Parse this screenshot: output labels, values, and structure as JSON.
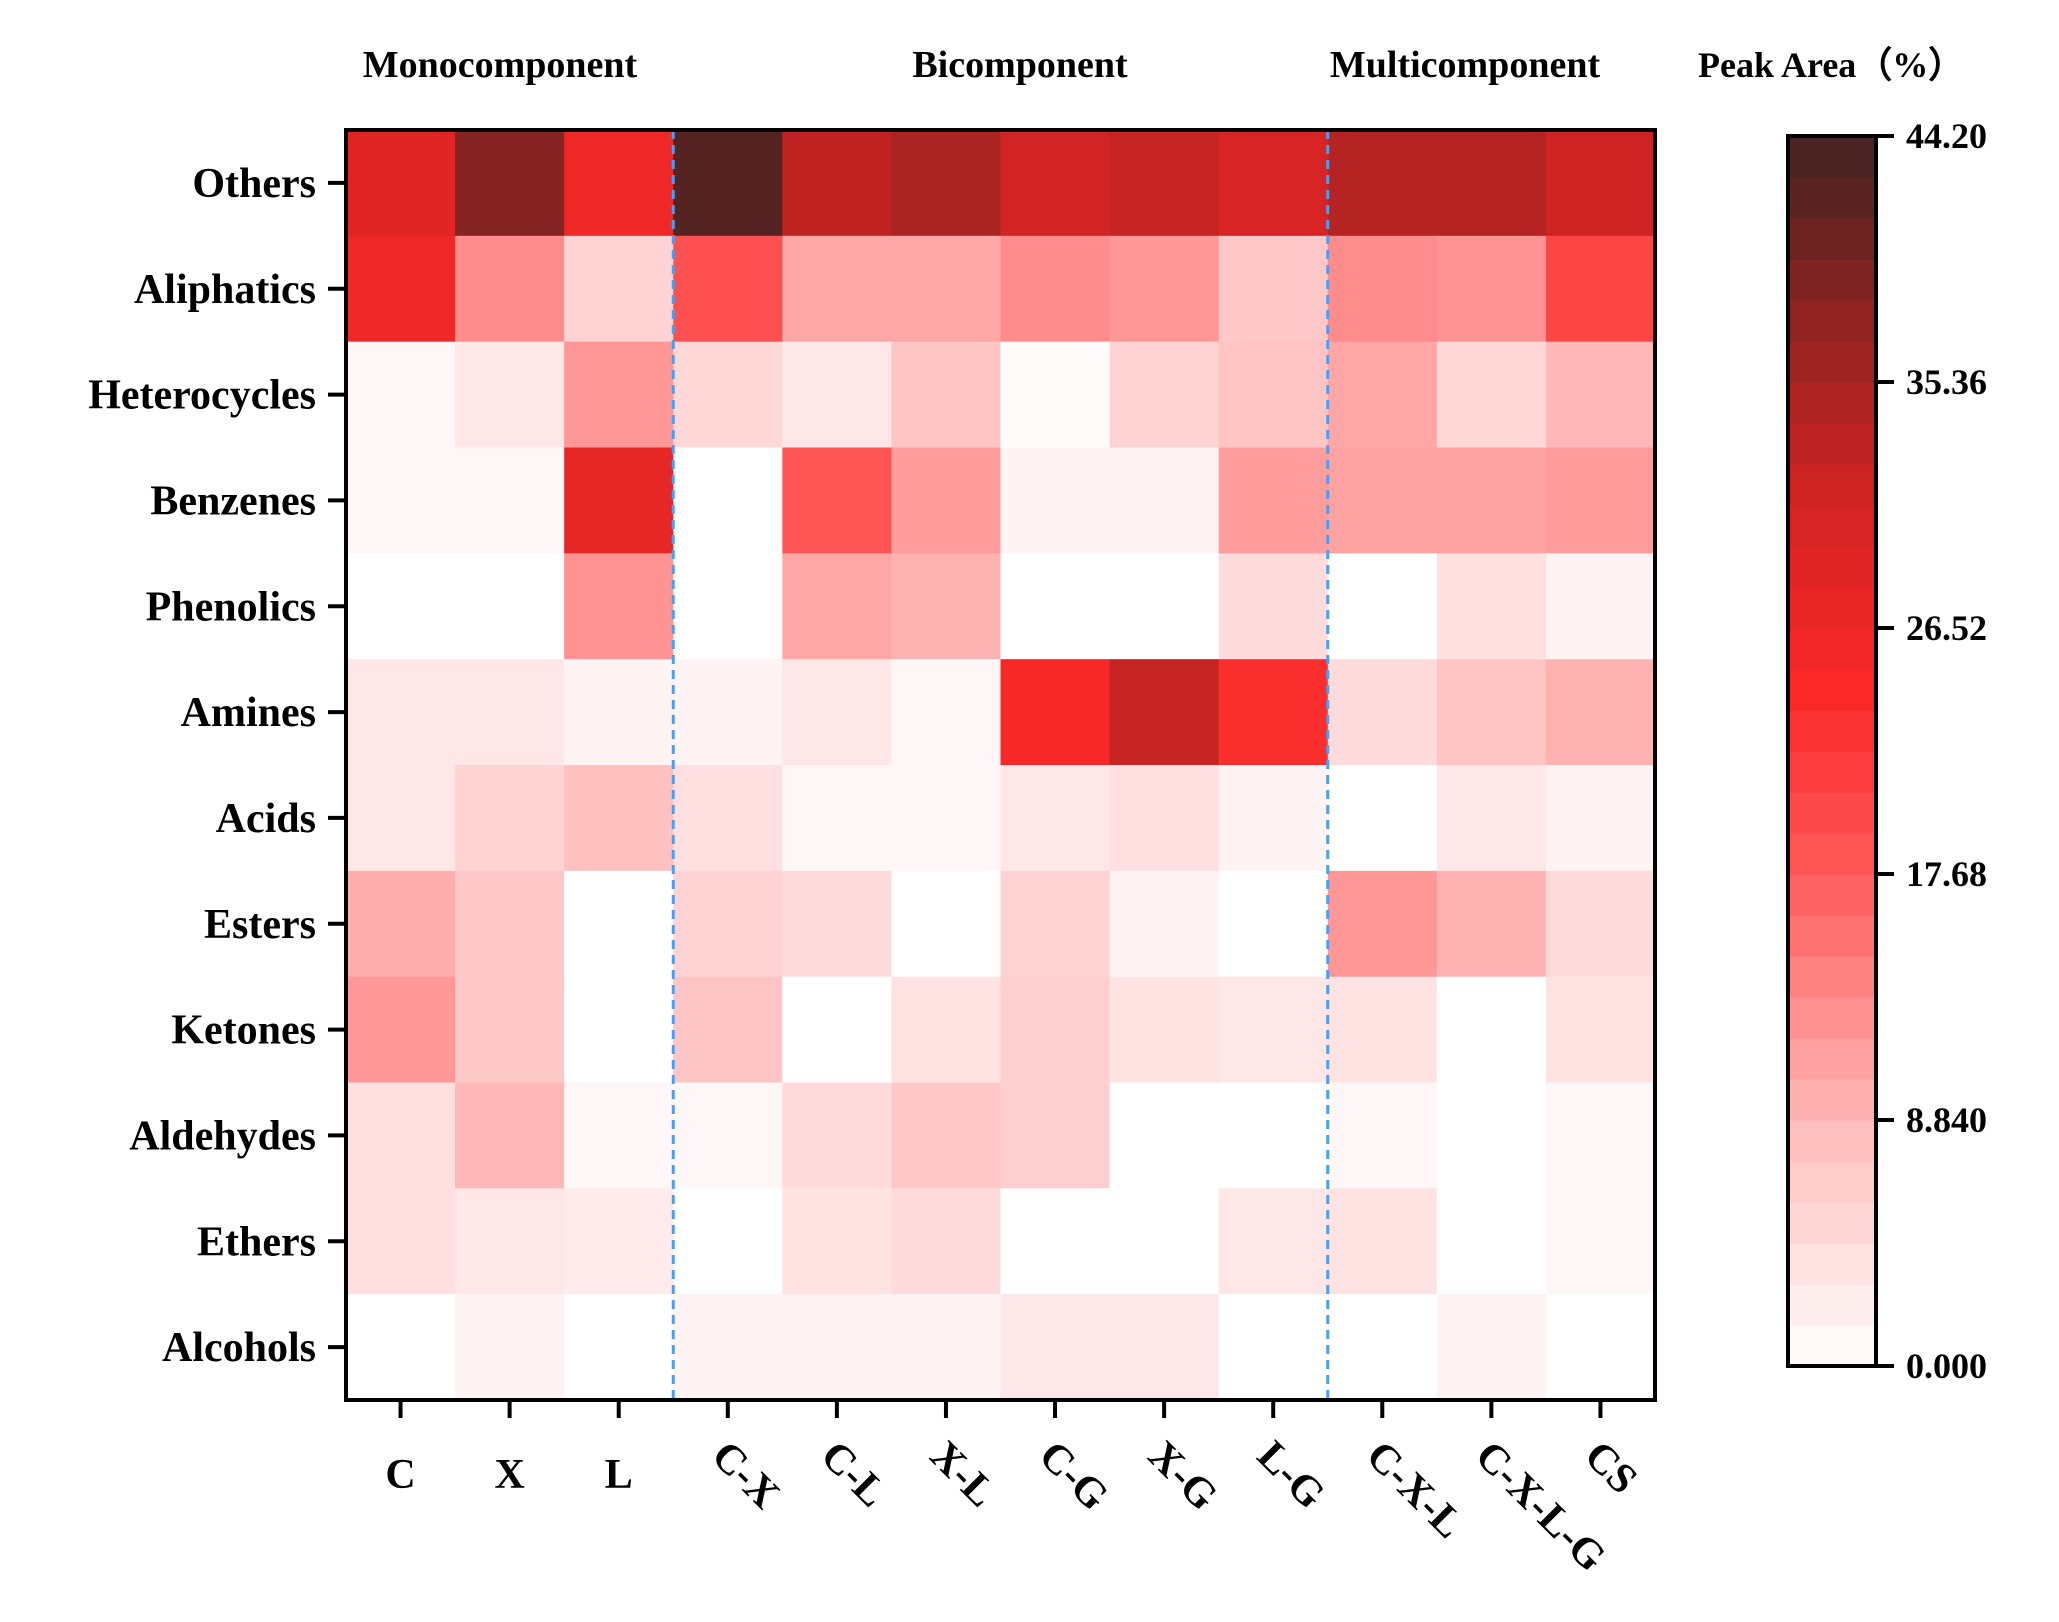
{
  "chart_data": {
    "type": "heatmap",
    "title": "",
    "group_labels": [
      "Monocomponent",
      "Bicomponent",
      "Multicomponent"
    ],
    "groups": [
      {
        "label": "Monocomponent",
        "columns": [
          "C",
          "X",
          "L"
        ]
      },
      {
        "label": "Bicomponent",
        "columns": [
          "C-X",
          "C-L",
          "X-L",
          "C-G",
          "X-G",
          "L-G"
        ]
      },
      {
        "label": "Multicomponent",
        "columns": [
          "C-X-L",
          "C-X-L-G",
          "CS"
        ]
      }
    ],
    "columns": [
      "C",
      "X",
      "L",
      "C-X",
      "C-L",
      "X-L",
      "C-G",
      "X-G",
      "L-G",
      "C-X-L",
      "C-X-L-G",
      "CS"
    ],
    "rows": [
      "Others",
      "Aliphatics",
      "Heterocycles",
      "Benzenes",
      "Phenolics",
      "Amines",
      "Acids",
      "Esters",
      "Ketones",
      "Aldehydes",
      "Ethers",
      "Alcohols"
    ],
    "values": [
      [
        28.5,
        38.5,
        26.0,
        42.5,
        33.0,
        35.0,
        31.0,
        32.5,
        30.0,
        34.0,
        34.0,
        31.5
      ],
      [
        26.0,
        13.0,
        5.5,
        19.0,
        10.5,
        10.5,
        13.0,
        12.0,
        7.0,
        13.0,
        12.5,
        20.5
      ],
      [
        1.0,
        3.0,
        12.0,
        5.0,
        3.0,
        7.5,
        0.5,
        5.5,
        7.5,
        10.5,
        5.0,
        9.0
      ],
      [
        1.0,
        1.0,
        27.5,
        0.0,
        18.5,
        11.5,
        1.5,
        1.5,
        11.5,
        11.0,
        11.0,
        11.5
      ],
      [
        0.0,
        0.0,
        12.5,
        0.0,
        10.5,
        9.5,
        0.0,
        0.0,
        4.5,
        0.0,
        4.0,
        1.5
      ],
      [
        3.0,
        3.0,
        1.5,
        1.5,
        3.0,
        1.0,
        24.5,
        32.5,
        23.5,
        4.5,
        7.5,
        9.5
      ],
      [
        3.0,
        5.5,
        8.0,
        4.0,
        1.0,
        1.0,
        3.0,
        4.0,
        1.5,
        0.0,
        3.0,
        1.5
      ],
      [
        10.0,
        7.0,
        0.0,
        5.5,
        4.5,
        0.0,
        5.5,
        1.5,
        0.0,
        12.0,
        9.5,
        4.5
      ],
      [
        12.0,
        7.0,
        0.0,
        7.5,
        0.0,
        3.5,
        6.0,
        3.5,
        3.0,
        3.5,
        0.0,
        3.5
      ],
      [
        4.0,
        9.0,
        1.0,
        1.0,
        4.5,
        7.0,
        6.0,
        0.0,
        0.0,
        1.0,
        0.0,
        1.0
      ],
      [
        4.0,
        3.0,
        2.5,
        0.0,
        3.5,
        4.5,
        0.0,
        0.0,
        3.0,
        3.5,
        0.0,
        1.0
      ],
      [
        0.0,
        1.5,
        0.0,
        1.5,
        1.5,
        1.5,
        3.0,
        3.0,
        0.0,
        0.0,
        1.5,
        0.0
      ]
    ],
    "colorbar": {
      "title": "Peak Area（%）",
      "ticks": [
        "44.20",
        "35.36",
        "26.52",
        "17.68",
        "8.840",
        "0.000"
      ],
      "range": [
        0,
        44.2
      ]
    }
  }
}
